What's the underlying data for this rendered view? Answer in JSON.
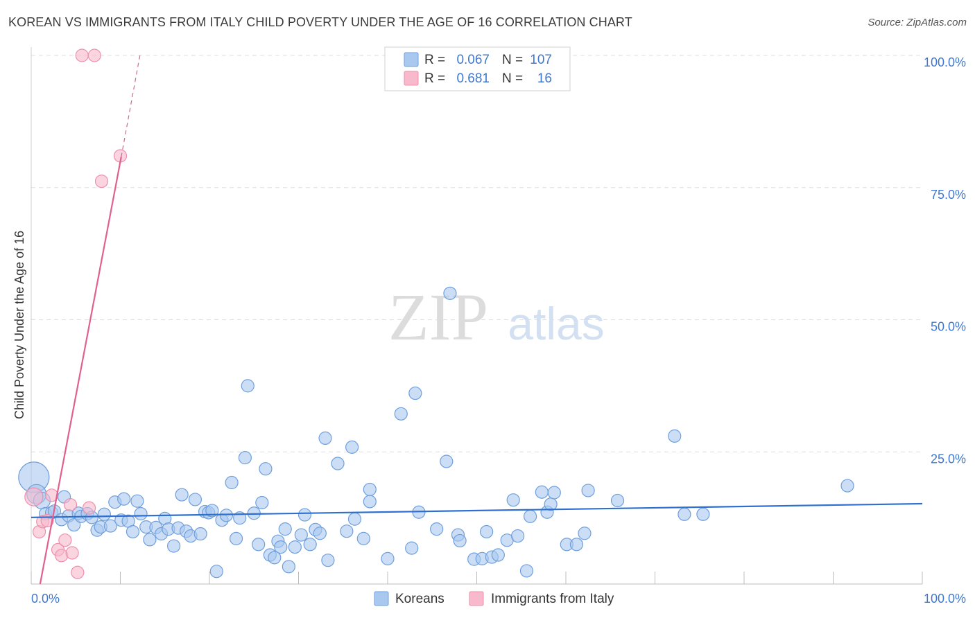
{
  "header": {
    "title": "KOREAN VS IMMIGRANTS FROM ITALY CHILD POVERTY UNDER THE AGE OF 16 CORRELATION CHART",
    "source": "Source: ZipAtlas.com"
  },
  "watermark": {
    "zip": "ZIP",
    "atlas": "atlas"
  },
  "legend_top": {
    "rows": [
      {
        "r_label": "R =",
        "r_value": "0.067",
        "n_label": "N =",
        "n_value": "107"
      },
      {
        "r_label": "R =",
        "r_value": "0.681",
        "n_label": "N =",
        "n_value": "16"
      }
    ]
  },
  "legend_bottom": {
    "items": [
      "Koreans",
      "Immigrants from Italy"
    ]
  },
  "colors": {
    "blue_fill": "#a9c8f0",
    "blue_stroke": "#6f9fdc",
    "blue_line": "#2f70cf",
    "pink_fill": "#f7b9cb",
    "pink_stroke": "#ee8fad",
    "pink_line": "#e0608f",
    "tick_text": "#3f78d1",
    "grid": "#dddddd"
  },
  "chart_data": {
    "type": "scatter",
    "title": "KOREAN VS IMMIGRANTS FROM ITALY CHILD POVERTY UNDER THE AGE OF 16 CORRELATION CHART",
    "xlabel": "",
    "ylabel": "Child Poverty Under the Age of 16",
    "xlim": [
      0,
      100
    ],
    "ylim": [
      0,
      100
    ],
    "x_tick_labels": [
      "0.0%",
      "100.0%"
    ],
    "y_tick_labels": [
      "25.0%",
      "50.0%",
      "75.0%",
      "100.0%"
    ],
    "y_ticks": [
      25,
      50,
      75,
      100
    ],
    "grid": true,
    "series": [
      {
        "name": "Koreans",
        "r": 0.067,
        "n": 107,
        "trend": {
          "x": [
            0,
            100
          ],
          "y": [
            12.6,
            15.2
          ]
        },
        "points": [
          [
            0.3,
            20.2,
            22
          ],
          [
            0.6,
            17.0,
            14
          ],
          [
            1.2,
            15.8,
            12
          ],
          [
            1.6,
            13.3,
            9
          ],
          [
            2.3,
            13.5,
            9
          ],
          [
            2.6,
            13.8,
            9
          ],
          [
            3.4,
            12.2,
            9
          ],
          [
            3.7,
            16.5,
            9
          ],
          [
            4.2,
            12.9,
            9
          ],
          [
            4.8,
            11.2,
            9
          ],
          [
            5.3,
            13.4,
            9
          ],
          [
            5.6,
            12.8,
            9
          ],
          [
            6.3,
            13.3,
            9
          ],
          [
            6.8,
            12.6,
            9
          ],
          [
            7.4,
            10.2,
            9
          ],
          [
            7.8,
            10.8,
            9
          ],
          [
            8.2,
            13.2,
            9
          ],
          [
            8.9,
            11.0,
            9
          ],
          [
            9.4,
            15.5,
            9
          ],
          [
            10.1,
            12.1,
            9
          ],
          [
            10.4,
            16.1,
            9
          ],
          [
            10.9,
            11.9,
            9
          ],
          [
            11.4,
            9.9,
            9
          ],
          [
            11.9,
            15.7,
            9
          ],
          [
            12.3,
            13.3,
            9
          ],
          [
            12.9,
            10.8,
            9
          ],
          [
            13.3,
            8.4,
            9
          ],
          [
            14.0,
            10.7,
            9
          ],
          [
            14.6,
            9.5,
            9
          ],
          [
            15.0,
            12.4,
            9
          ],
          [
            15.4,
            10.4,
            9
          ],
          [
            16.0,
            7.2,
            9
          ],
          [
            16.5,
            10.6,
            9
          ],
          [
            16.9,
            16.9,
            9
          ],
          [
            17.4,
            10.0,
            9
          ],
          [
            17.9,
            9.1,
            9
          ],
          [
            18.4,
            16.0,
            9
          ],
          [
            19.0,
            9.5,
            9
          ],
          [
            19.5,
            13.7,
            9
          ],
          [
            19.9,
            13.5,
            9
          ],
          [
            20.3,
            13.9,
            9
          ],
          [
            20.8,
            2.4,
            9
          ],
          [
            21.4,
            12.1,
            9
          ],
          [
            21.9,
            13.0,
            9
          ],
          [
            22.5,
            19.2,
            9
          ],
          [
            23.0,
            8.6,
            9
          ],
          [
            23.4,
            12.5,
            9
          ],
          [
            24.0,
            23.9,
            9
          ],
          [
            24.3,
            37.5,
            9
          ],
          [
            25.0,
            13.4,
            9
          ],
          [
            25.5,
            7.5,
            9
          ],
          [
            25.9,
            15.4,
            9
          ],
          [
            26.3,
            21.8,
            9
          ],
          [
            26.8,
            5.5,
            9
          ],
          [
            27.3,
            5.0,
            9
          ],
          [
            27.7,
            8.1,
            9
          ],
          [
            28.0,
            7.0,
            9
          ],
          [
            28.5,
            10.4,
            9
          ],
          [
            28.9,
            3.3,
            9
          ],
          [
            29.6,
            7.0,
            9
          ],
          [
            30.3,
            9.3,
            9
          ],
          [
            30.7,
            13.1,
            9
          ],
          [
            31.3,
            7.5,
            9
          ],
          [
            31.9,
            10.3,
            9
          ],
          [
            32.4,
            9.6,
            9
          ],
          [
            33.0,
            27.6,
            9
          ],
          [
            33.3,
            4.5,
            9
          ],
          [
            34.4,
            22.8,
            9
          ],
          [
            35.4,
            10.0,
            9
          ],
          [
            36.0,
            25.9,
            9
          ],
          [
            36.3,
            12.3,
            9
          ],
          [
            37.3,
            8.6,
            9
          ],
          [
            38.0,
            17.9,
            9
          ],
          [
            38.0,
            15.6,
            9
          ],
          [
            40.0,
            4.8,
            9
          ],
          [
            41.5,
            32.2,
            9
          ],
          [
            42.7,
            6.8,
            9
          ],
          [
            43.1,
            36.1,
            9
          ],
          [
            43.5,
            13.6,
            9
          ],
          [
            45.5,
            10.4,
            9
          ],
          [
            46.6,
            23.2,
            9
          ],
          [
            47.0,
            55.0,
            9
          ],
          [
            47.9,
            9.3,
            9
          ],
          [
            48.1,
            8.2,
            9
          ],
          [
            49.7,
            4.7,
            9
          ],
          [
            50.6,
            4.8,
            9
          ],
          [
            51.1,
            9.9,
            9
          ],
          [
            51.7,
            5.1,
            9
          ],
          [
            52.4,
            5.5,
            9
          ],
          [
            53.4,
            8.3,
            9
          ],
          [
            54.1,
            15.9,
            9
          ],
          [
            54.6,
            9.1,
            9
          ],
          [
            55.6,
            2.5,
            9
          ],
          [
            56.0,
            12.8,
            9
          ],
          [
            57.3,
            17.4,
            9
          ],
          [
            57.9,
            13.6,
            9
          ],
          [
            58.3,
            15.1,
            9
          ],
          [
            58.7,
            17.3,
            9
          ],
          [
            60.1,
            7.5,
            9
          ],
          [
            61.2,
            7.5,
            9
          ],
          [
            62.1,
            9.6,
            9
          ],
          [
            62.5,
            17.7,
            9
          ],
          [
            65.8,
            15.8,
            9
          ],
          [
            72.2,
            28.0,
            9
          ],
          [
            73.3,
            13.2,
            9
          ],
          [
            75.4,
            13.2,
            9
          ],
          [
            91.6,
            18.6,
            9
          ]
        ]
      },
      {
        "name": "Immigrants from Italy",
        "r": 0.681,
        "n": 16,
        "trend": {
          "x": [
            1.0,
            10.1
          ],
          "y": [
            0,
            80.8
          ],
          "dashed_to": {
            "x": 12.2,
            "y": 100
          }
        },
        "points": [
          [
            0.3,
            16.5,
            13
          ],
          [
            0.9,
            9.9,
            9
          ],
          [
            1.3,
            11.8,
            9
          ],
          [
            1.8,
            12.0,
            9
          ],
          [
            2.3,
            16.8,
            9
          ],
          [
            3.0,
            6.5,
            9
          ],
          [
            3.4,
            5.4,
            9
          ],
          [
            3.8,
            8.3,
            9
          ],
          [
            4.4,
            15.0,
            9
          ],
          [
            4.6,
            5.9,
            9
          ],
          [
            5.2,
            2.2,
            9
          ],
          [
            6.5,
            14.4,
            9
          ],
          [
            7.9,
            76.2,
            9
          ],
          [
            10.0,
            81.0,
            9
          ],
          [
            5.7,
            100.0,
            9
          ],
          [
            7.1,
            100.0,
            9
          ]
        ]
      }
    ]
  }
}
